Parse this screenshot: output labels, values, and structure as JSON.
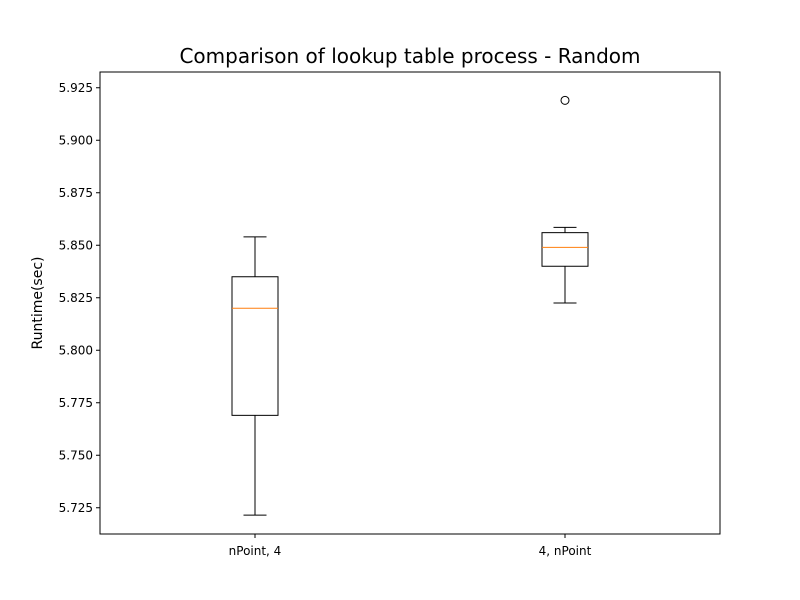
{
  "chart_data": {
    "type": "box",
    "title": "Comparison of lookup table process - Random",
    "xlabel": "",
    "ylabel": "Runtime(sec)",
    "ylim": [
      5.7125,
      5.9325
    ],
    "yticks": [
      "5.725",
      "5.750",
      "5.775",
      "5.800",
      "5.825",
      "5.850",
      "5.875",
      "5.900",
      "5.925"
    ],
    "categories": [
      "nPoint, 4",
      "4, nPoint"
    ],
    "boxes": [
      {
        "category": "nPoint, 4",
        "whisker_low": 5.7215,
        "q1": 5.769,
        "median": 5.82,
        "q3": 5.835,
        "whisker_high": 5.854,
        "outliers": []
      },
      {
        "category": "4, nPoint",
        "whisker_low": 5.8225,
        "q1": 5.84,
        "median": 5.849,
        "q3": 5.856,
        "whisker_high": 5.8585,
        "outliers": [
          5.919
        ]
      }
    ],
    "grid": false,
    "colors": {
      "box": "#000000",
      "median": "#ff7f0e",
      "axis": "#000000"
    }
  }
}
